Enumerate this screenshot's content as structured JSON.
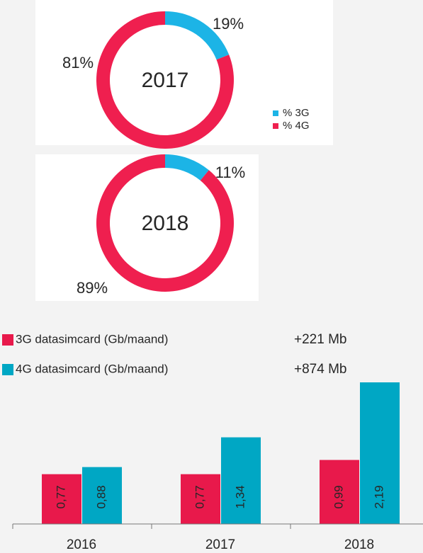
{
  "chart_data": [
    {
      "type": "donut",
      "title": "2017",
      "categories": [
        "% 3G",
        "% 4G"
      ],
      "values": [
        19,
        81
      ],
      "value_labels": [
        "19%",
        "81%"
      ],
      "colors": [
        "#1cb4e6",
        "#ef1f4f"
      ]
    },
    {
      "type": "donut",
      "title": "2018",
      "values": [
        11,
        89
      ],
      "value_labels": [
        "11%",
        "89%"
      ],
      "colors": [
        "#1cb4e6",
        "#ef1f4f"
      ]
    },
    {
      "type": "bar",
      "categories": [
        "2016",
        "2017",
        "2018"
      ],
      "series": [
        {
          "name": "3G datasimcard (Gb/maand)",
          "color": "#e8194b",
          "values": [
            0.77,
            0.77,
            0.99
          ],
          "value_labels": [
            "0,77",
            "0,77",
            "0,99"
          ]
        },
        {
          "name": "4G datasimcard (Gb/maand)",
          "color": "#00a7c4",
          "values": [
            0.88,
            1.34,
            2.19
          ],
          "value_labels": [
            "0,88",
            "1,34",
            "2,19"
          ]
        }
      ],
      "annotations": [
        "+221 Mb",
        "+874 Mb"
      ]
    }
  ]
}
